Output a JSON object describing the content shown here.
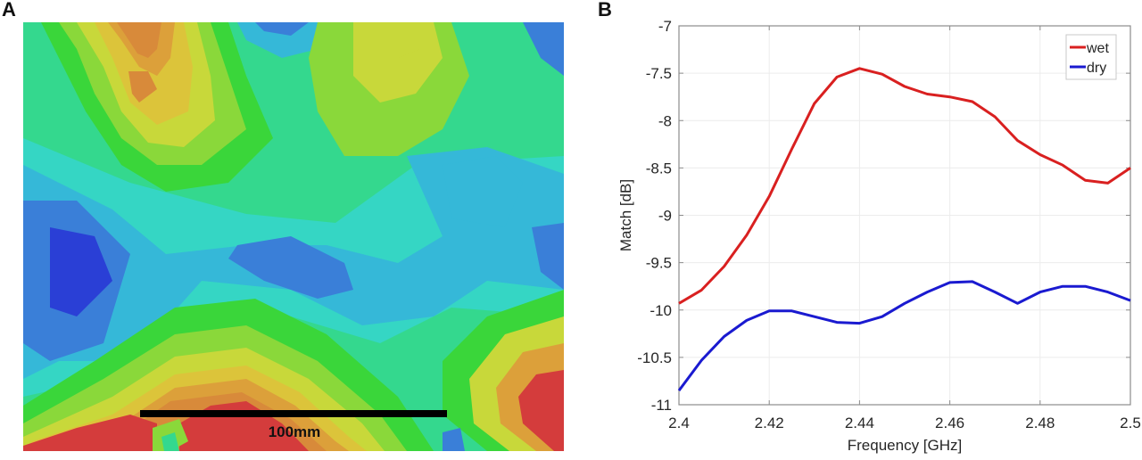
{
  "panels": {
    "a_label": "A",
    "b_label": "B"
  },
  "heatmap": {
    "scale_bar_label": "100mm",
    "colormap": [
      "#2a3fd6",
      "#3a7fd8",
      "#35b8d8",
      "#35d6c4",
      "#34d88e",
      "#3ad63a",
      "#8ad83a",
      "#c8d83a",
      "#dcc43a",
      "#dca03a",
      "#d88a3a",
      "#d8643a",
      "#d43c3c"
    ]
  },
  "chart_data": {
    "type": "line",
    "title": "",
    "xlabel": "Frequency [GHz]",
    "ylabel": "Match [dB]",
    "xlim": [
      2.4,
      2.5
    ],
    "ylim": [
      -11,
      -7
    ],
    "xticks": [
      2.4,
      2.42,
      2.44,
      2.46,
      2.48,
      2.5
    ],
    "xtick_labels": [
      "2.4",
      "2.42",
      "2.44",
      "2.46",
      "2.48",
      "2.5"
    ],
    "yticks": [
      -7,
      -7.5,
      -8,
      -8.5,
      -9,
      -9.5,
      -10,
      -10.5,
      -11
    ],
    "ytick_labels": [
      "-7",
      "-7.5",
      "-8",
      "-8.5",
      "-9",
      "-9.5",
      "-10",
      "-10.5",
      "-11"
    ],
    "grid": true,
    "legend_position": "top-right",
    "x": [
      2.4,
      2.405,
      2.41,
      2.415,
      2.42,
      2.425,
      2.43,
      2.435,
      2.44,
      2.445,
      2.45,
      2.455,
      2.46,
      2.465,
      2.47,
      2.475,
      2.48,
      2.485,
      2.49,
      2.495,
      2.5
    ],
    "series": [
      {
        "name": "wet",
        "color": "#d92020",
        "values": [
          -9.93,
          -9.79,
          -9.54,
          -9.21,
          -8.8,
          -8.3,
          -7.82,
          -7.54,
          -7.45,
          -7.51,
          -7.64,
          -7.72,
          -7.75,
          -7.8,
          -7.96,
          -8.21,
          -8.36,
          -8.47,
          -8.63,
          -8.66,
          -8.5
        ]
      },
      {
        "name": "dry",
        "color": "#1a1ad0",
        "values": [
          -10.85,
          -10.53,
          -10.28,
          -10.11,
          -10.01,
          -10.01,
          -10.07,
          -10.13,
          -10.14,
          -10.07,
          -9.93,
          -9.81,
          -9.71,
          -9.7,
          -9.81,
          -9.93,
          -9.81,
          -9.75,
          -9.75,
          -9.81,
          -9.9
        ]
      }
    ]
  }
}
